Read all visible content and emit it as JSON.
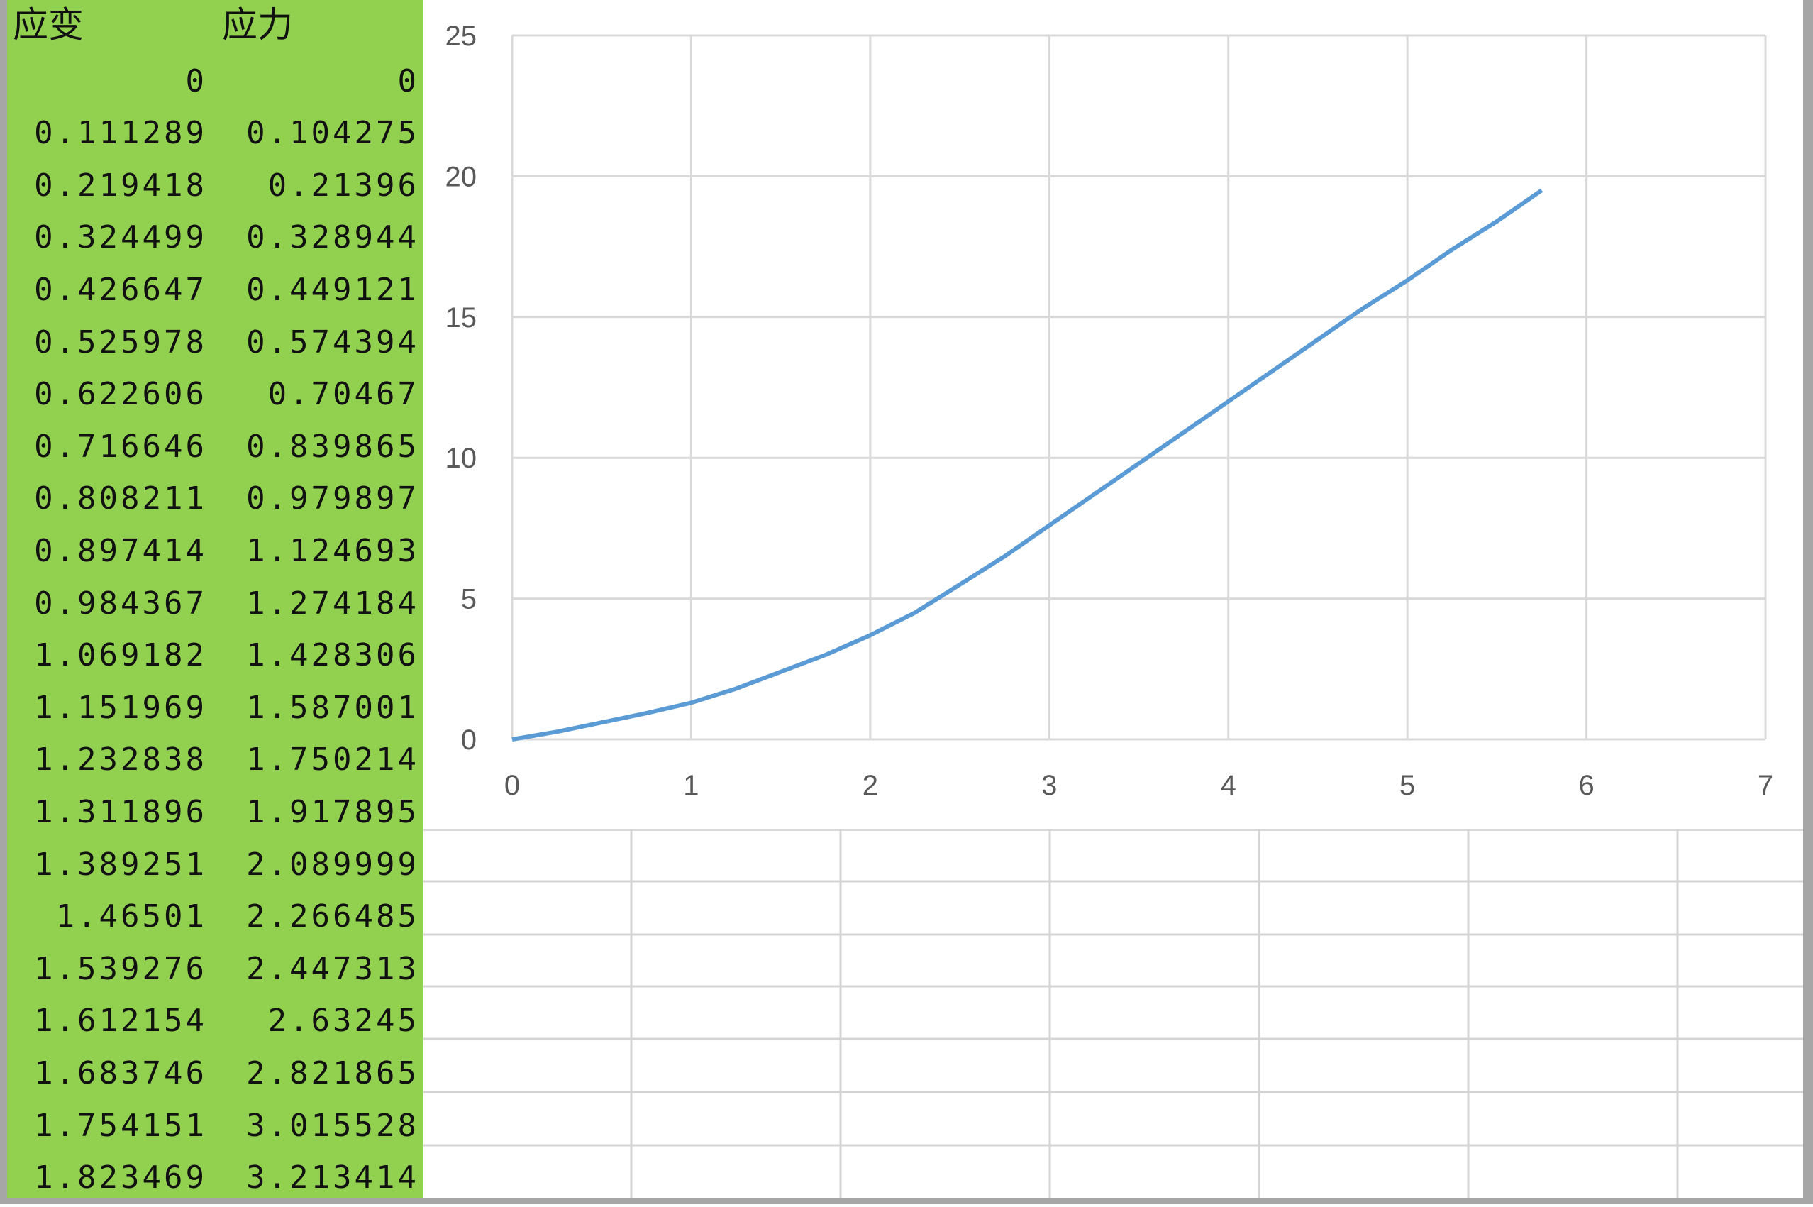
{
  "table": {
    "headers": [
      "应变",
      "应力"
    ],
    "rows": [
      [
        "0",
        "0"
      ],
      [
        "0.111289",
        "0.104275"
      ],
      [
        "0.219418",
        "0.21396"
      ],
      [
        "0.324499",
        "0.328944"
      ],
      [
        "0.426647",
        "0.449121"
      ],
      [
        "0.525978",
        "0.574394"
      ],
      [
        "0.622606",
        "0.70467"
      ],
      [
        "0.716646",
        "0.839865"
      ],
      [
        "0.808211",
        "0.979897"
      ],
      [
        "0.897414",
        "1.124693"
      ],
      [
        "0.984367",
        "1.274184"
      ],
      [
        "1.069182",
        "1.428306"
      ],
      [
        "1.151969",
        "1.587001"
      ],
      [
        "1.232838",
        "1.750214"
      ],
      [
        "1.311896",
        "1.917895"
      ],
      [
        "1.389251",
        "2.089999"
      ],
      [
        "1.46501",
        "2.266485"
      ],
      [
        "1.539276",
        "2.447313"
      ],
      [
        "1.612154",
        "2.63245"
      ],
      [
        "1.683746",
        "2.821865"
      ],
      [
        "1.754151",
        "3.015528"
      ],
      [
        "1.823469",
        "3.213414"
      ]
    ],
    "fill_color": "#92d050"
  },
  "chart_data": {
    "type": "line",
    "title": "",
    "xlabel": "",
    "ylabel": "",
    "xlim": [
      0,
      7
    ],
    "ylim": [
      0,
      25
    ],
    "x_ticks": [
      "0",
      "1",
      "2",
      "3",
      "4",
      "5",
      "6",
      "7"
    ],
    "y_ticks": [
      "0",
      "5",
      "10",
      "15",
      "20",
      "25"
    ],
    "grid": true,
    "legend": "none",
    "line_color": "#5b9bd5",
    "series": [
      {
        "x": [
          0,
          0.25,
          0.5,
          0.75,
          1.0,
          1.25,
          1.5,
          1.75,
          2.0,
          2.25,
          2.5,
          2.75,
          3.0,
          3.25,
          3.5,
          3.75,
          4.0,
          4.25,
          4.5,
          4.75,
          5.0,
          5.25,
          5.5,
          5.75
        ],
        "y": [
          0,
          0.27,
          0.6,
          0.93,
          1.3,
          1.8,
          2.4,
          3.0,
          3.7,
          4.5,
          5.5,
          6.5,
          7.6,
          8.7,
          9.8,
          10.9,
          12.0,
          13.1,
          14.2,
          15.3,
          16.3,
          17.4,
          18.4,
          19.5
        ]
      }
    ]
  }
}
